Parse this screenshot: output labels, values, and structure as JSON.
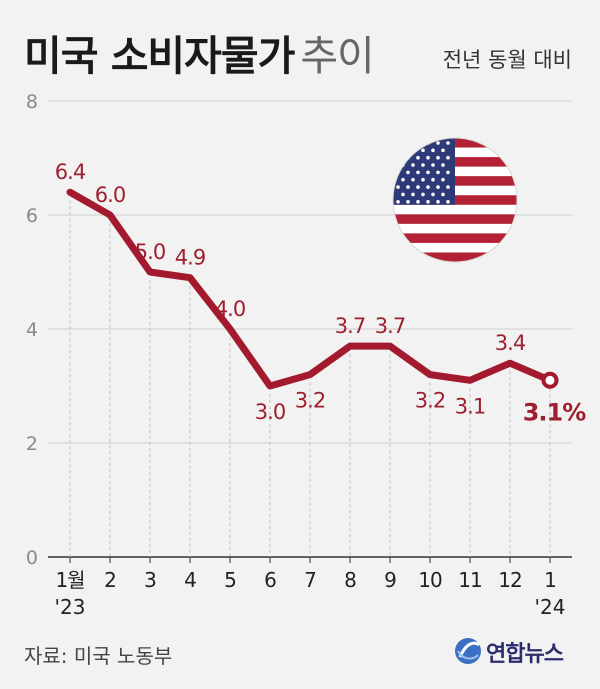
{
  "header": {
    "title_bold": "미국 소비자물가",
    "title_light": "추이",
    "subtitle": "전년 동월 대비"
  },
  "footer": {
    "source": "자료: 미국 노동부",
    "logo_text": "연합뉴스"
  },
  "colors": {
    "line": "#a3192d",
    "label": "#9e1f2f",
    "grid": "#cfcfcf",
    "axis": "#333333",
    "background": "#f2f2f2"
  },
  "chart_data": {
    "type": "line",
    "title": "미국 소비자물가 추이",
    "subtitle": "전년 동월 대비",
    "categories": [
      "1월",
      "2",
      "3",
      "4",
      "5",
      "6",
      "7",
      "8",
      "9",
      "10",
      "11",
      "12",
      "1"
    ],
    "year_labels": [
      "'23",
      "",
      "",
      "",
      "",
      "",
      "",
      "",
      "",
      "",
      "",
      "",
      "'24"
    ],
    "values": [
      6.4,
      6.0,
      5.0,
      4.9,
      4.0,
      3.0,
      3.2,
      3.7,
      3.7,
      3.2,
      3.1,
      3.4,
      3.1
    ],
    "value_labels": [
      "6.4",
      "6.0",
      "5.0",
      "4.9",
      "4.0",
      "3.0",
      "3.2",
      "3.7",
      "3.7",
      "3.2",
      "3.1",
      "3.4",
      "3.1%"
    ],
    "label_position": [
      "above",
      "above",
      "above",
      "above",
      "above",
      "below",
      "below",
      "above",
      "above",
      "below",
      "below",
      "above",
      "below"
    ],
    "ylim": [
      0,
      8
    ],
    "yticks": [
      "0",
      "2",
      "4",
      "6",
      "8"
    ],
    "grid": true,
    "legend": "none",
    "flag_icon": "us-flag-icon"
  }
}
